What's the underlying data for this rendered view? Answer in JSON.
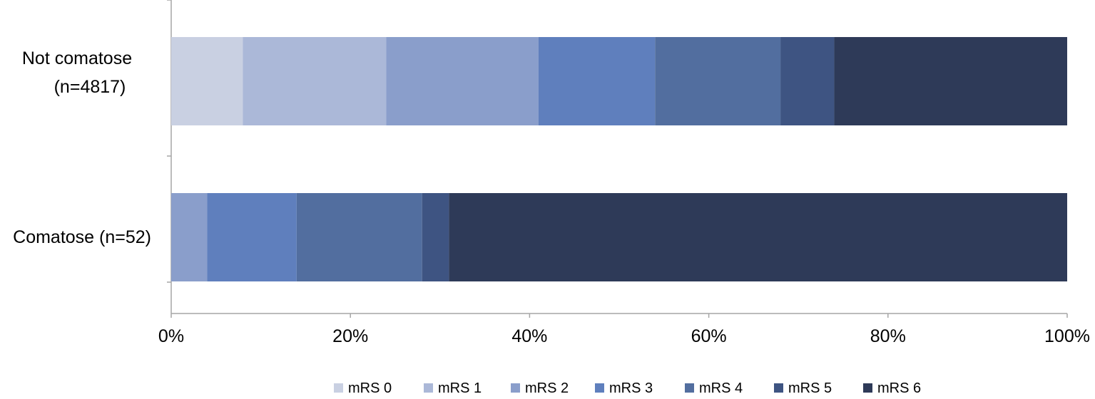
{
  "chart_data": {
    "type": "bar",
    "orientation": "horizontal",
    "stacked": true,
    "normalized": true,
    "title": "",
    "xlabel": "",
    "ylabel": "",
    "xlim": [
      0,
      100
    ],
    "x_ticks": [
      "0%",
      "20%",
      "40%",
      "60%",
      "80%",
      "100%"
    ],
    "x_tick_values": [
      0,
      20,
      40,
      60,
      80,
      100
    ],
    "grid": false,
    "legend_position": "bottom",
    "categories": [
      {
        "line1": "Not comatose",
        "line2": "(n=4817)"
      },
      {
        "line1": "Comatose (n=52)",
        "line2": ""
      }
    ],
    "series": [
      {
        "name": "mRS 0",
        "color": "#c9d0e2",
        "values": [
          8,
          0
        ]
      },
      {
        "name": "mRS 1",
        "color": "#abb8d8",
        "values": [
          16,
          0
        ]
      },
      {
        "name": "mRS 2",
        "color": "#8a9ecb",
        "values": [
          17,
          4
        ]
      },
      {
        "name": "mRS 3",
        "color": "#5f7fbd",
        "values": [
          13,
          10
        ]
      },
      {
        "name": "mRS 4",
        "color": "#526e9f",
        "values": [
          14,
          14
        ]
      },
      {
        "name": "mRS 5",
        "color": "#3e5482",
        "values": [
          6,
          3
        ]
      },
      {
        "name": "mRS 6",
        "color": "#2e3a58",
        "values": [
          26,
          69
        ]
      }
    ]
  }
}
